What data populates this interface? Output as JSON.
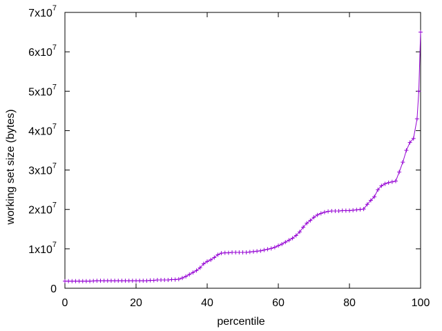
{
  "chart_data": {
    "type": "line",
    "title": "",
    "xlabel": "percentile",
    "ylabel": "working set size (bytes)",
    "xlim": [
      0,
      100
    ],
    "ylim": [
      0,
      70000000
    ],
    "grid": false,
    "legend": "none",
    "marker": "+",
    "colors": {
      "series": "#9400d3",
      "axes": "#000000"
    },
    "x_ticks": [
      {
        "value": 0,
        "label": "0"
      },
      {
        "value": 20,
        "label": "20"
      },
      {
        "value": 40,
        "label": "40"
      },
      {
        "value": 60,
        "label": "60"
      },
      {
        "value": 80,
        "label": "80"
      },
      {
        "value": 100,
        "label": "100"
      }
    ],
    "y_ticks": [
      {
        "value": 0,
        "mantissa": "0",
        "exp": ""
      },
      {
        "value": 10000000,
        "mantissa": "1x10",
        "exp": "7"
      },
      {
        "value": 20000000,
        "mantissa": "2x10",
        "exp": "7"
      },
      {
        "value": 30000000,
        "mantissa": "3x10",
        "exp": "7"
      },
      {
        "value": 40000000,
        "mantissa": "4x10",
        "exp": "7"
      },
      {
        "value": 50000000,
        "mantissa": "5x10",
        "exp": "7"
      },
      {
        "value": 60000000,
        "mantissa": "6x10",
        "exp": "7"
      },
      {
        "value": 70000000,
        "mantissa": "7x10",
        "exp": "7"
      }
    ],
    "series": [
      {
        "x": [
          0,
          1,
          2,
          3,
          4,
          5,
          6,
          7,
          8,
          9,
          10,
          11,
          12,
          13,
          14,
          15,
          16,
          17,
          18,
          19,
          20,
          21,
          22,
          23,
          24,
          25,
          26,
          27,
          28,
          29,
          30,
          31,
          32,
          33,
          34,
          35,
          36,
          37,
          38,
          39,
          40,
          41,
          42,
          43,
          44,
          45,
          46,
          47,
          48,
          49,
          50,
          51,
          52,
          53,
          54,
          55,
          56,
          57,
          58,
          59,
          60,
          61,
          62,
          63,
          64,
          65,
          66,
          67,
          68,
          69,
          70,
          71,
          72,
          73,
          74,
          75,
          76,
          77,
          78,
          79,
          80,
          81,
          82,
          83,
          84,
          85,
          86,
          87,
          88,
          89,
          90,
          91,
          92,
          93,
          94,
          95,
          96,
          97,
          98,
          99,
          99.5,
          100
        ],
        "y": [
          1800000,
          1800000,
          1800000,
          1800000,
          1800000,
          1800000,
          1800000,
          1800000,
          1850000,
          1900000,
          1900000,
          1900000,
          1900000,
          1900000,
          1900000,
          1900000,
          1900000,
          1900000,
          1900000,
          1900000,
          1900000,
          1900000,
          1900000,
          1900000,
          2000000,
          2000000,
          2100000,
          2100000,
          2100000,
          2100000,
          2200000,
          2200000,
          2300000,
          2600000,
          3000000,
          3500000,
          4000000,
          4500000,
          5200000,
          6200000,
          6800000,
          7200000,
          7800000,
          8500000,
          8900000,
          9000000,
          9000000,
          9100000,
          9100000,
          9100000,
          9100000,
          9100000,
          9200000,
          9300000,
          9400000,
          9500000,
          9700000,
          9900000,
          10100000,
          10400000,
          10800000,
          11200000,
          11700000,
          12200000,
          12700000,
          13400000,
          14300000,
          15500000,
          16500000,
          17200000,
          18000000,
          18600000,
          19000000,
          19300000,
          19500000,
          19600000,
          19600000,
          19600000,
          19700000,
          19700000,
          19700000,
          19800000,
          19900000,
          20000000,
          20100000,
          21300000,
          22300000,
          23200000,
          25000000,
          26000000,
          26500000,
          26800000,
          27000000,
          27200000,
          29500000,
          32000000,
          35000000,
          37000000,
          38000000,
          43000000,
          50000000,
          65000000
        ]
      }
    ]
  }
}
